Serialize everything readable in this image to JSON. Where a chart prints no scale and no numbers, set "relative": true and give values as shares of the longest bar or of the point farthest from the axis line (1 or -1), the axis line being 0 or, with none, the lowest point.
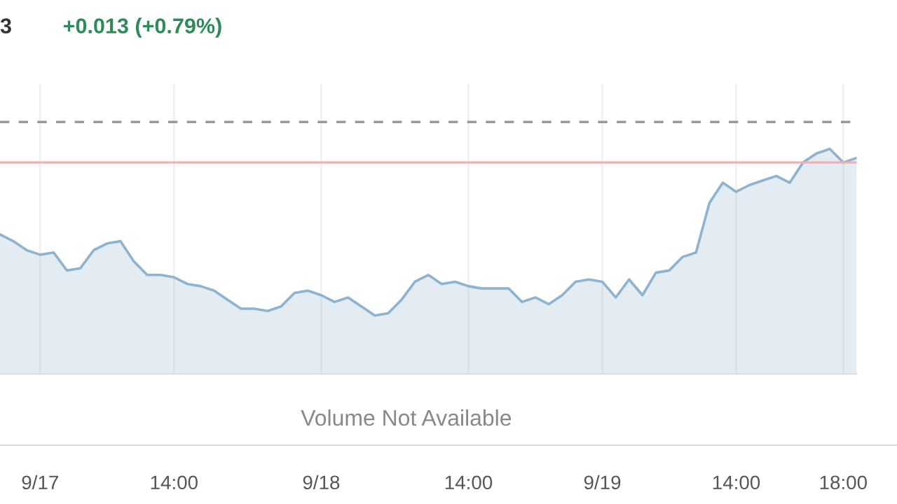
{
  "chart_data": {
    "type": "area",
    "title": "+0.013 (+0.79%)",
    "relative": true,
    "annotations": [
      "3",
      "Volume Not Available"
    ],
    "categories": [
      null,
      null,
      null,
      "9/17",
      null,
      null,
      null,
      null,
      null,
      null,
      null,
      null,
      null,
      "14:00",
      null,
      null,
      null,
      null,
      null,
      null,
      null,
      null,
      null,
      null,
      "9/18",
      null,
      null,
      null,
      null,
      null,
      null,
      null,
      null,
      null,
      null,
      "14:00",
      null,
      null,
      null,
      null,
      null,
      null,
      null,
      null,
      null,
      "9/19",
      null,
      null,
      null,
      null,
      null,
      null,
      null,
      null,
      null,
      "14:00",
      null,
      null,
      null,
      null,
      null,
      null,
      null,
      "18:00",
      null
    ],
    "series": [
      {
        "color": "#8fb3cf",
        "values": [
          0.62,
          0.59,
          0.55,
          0.53,
          0.54,
          0.46,
          0.47,
          0.55,
          0.58,
          0.59,
          0.5,
          0.44,
          0.44,
          0.43,
          0.4,
          0.39,
          0.37,
          0.33,
          0.29,
          0.29,
          0.28,
          0.3,
          0.36,
          0.37,
          0.35,
          0.32,
          0.34,
          0.3,
          0.26,
          0.27,
          0.33,
          0.41,
          0.44,
          0.4,
          0.41,
          0.39,
          0.38,
          0.38,
          0.38,
          0.32,
          0.34,
          0.31,
          0.35,
          0.41,
          0.42,
          0.41,
          0.34,
          0.42,
          0.35,
          0.45,
          0.46,
          0.52,
          0.54,
          0.76,
          0.85,
          0.81,
          0.84,
          0.86,
          0.88,
          0.85,
          0.94,
          0.98,
          1.0,
          0.94,
          0.96
        ]
      }
    ],
    "ref_lines": [
      {
        "axis": "y",
        "value": 1.12,
        "color": "#999999",
        "line_style": "dashed"
      },
      {
        "axis": "y",
        "value": 0.94,
        "color": "#f4b0b0",
        "line_style": "solid"
      }
    ],
    "grid": "x",
    "legend": false
  }
}
